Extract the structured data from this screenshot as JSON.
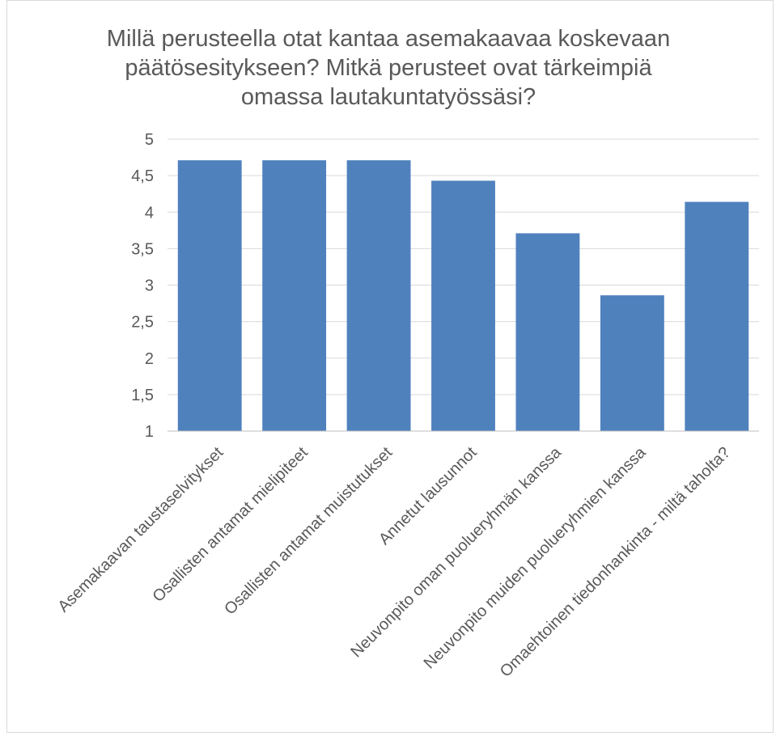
{
  "chart_data": {
    "type": "bar",
    "title": "Millä perusteella otat kantaa asemakaavaa koskevaan päätösesitykseen? Mitkä perusteet ovat tärkeimpiä omassa lautakuntatyössäsi?",
    "categories": [
      "Asemakaavan taustaselvitykset",
      "Osallisten antamat mielipiteet",
      "Osallisten antamat muistutukset",
      "Annetut lausunnot",
      "Neuvonpito oman puolueryhmän kanssa",
      "Neuvonpito muiden puolueryhmien kanssa",
      "Omaehtoinen tiedonhankinta - miltä taholta?"
    ],
    "values": [
      4.71,
      4.71,
      4.71,
      4.43,
      3.71,
      2.86,
      4.14
    ],
    "ylim": [
      1,
      5
    ],
    "yticks": [
      "1",
      "1,5",
      "2",
      "2,5",
      "3",
      "3,5",
      "4",
      "4,5",
      "5"
    ],
    "ytick_values": [
      1,
      1.5,
      2,
      2.5,
      3,
      3.5,
      4,
      4.5,
      5
    ],
    "xlabel": "",
    "ylabel": "",
    "grid": true,
    "legend": "none",
    "colors": {
      "bar": "#4f81bd",
      "grid": "#d9d9d9",
      "axis": "#bfbfbf",
      "text": "#595959"
    }
  }
}
